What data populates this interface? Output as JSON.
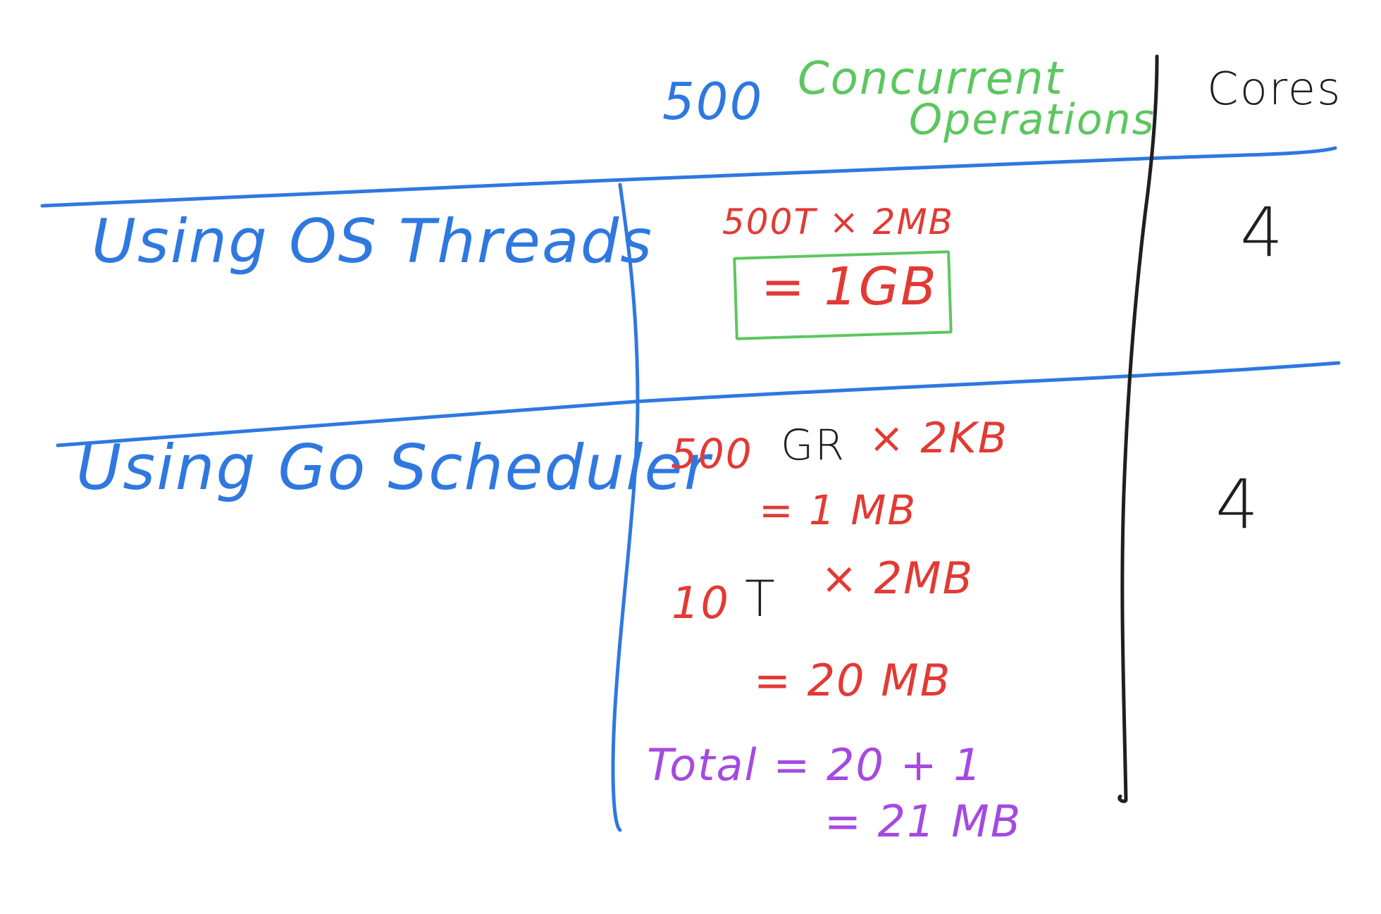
{
  "header": {
    "operation_count": "500",
    "operations_label_line1": "Concurrent",
    "operations_label_line2": "Operations",
    "cores_label": "Cores"
  },
  "rows": [
    {
      "label": "Using OS Threads",
      "calculation": "500T × 2MB",
      "result": "= 1GB",
      "cores": "4"
    },
    {
      "label": "Using Go Scheduler",
      "gr_calc": {
        "prefix": "500",
        "emphasis": "GR",
        "suffix": "× 2KB",
        "result": "= 1 MB"
      },
      "thread_calc": {
        "prefix": "10",
        "emphasis": "T",
        "suffix": "× 2MB",
        "result": "= 20 MB"
      },
      "total": {
        "calculation": "Total = 20 + 1",
        "result": "= 21 MB"
      },
      "cores": "4"
    }
  ],
  "colors": {
    "table_lines": "#2f78e0",
    "column_divider": "#1f1f1f",
    "os_box": "#5cc75f",
    "calculations": "#e23a34",
    "total": "#a54ae0"
  }
}
